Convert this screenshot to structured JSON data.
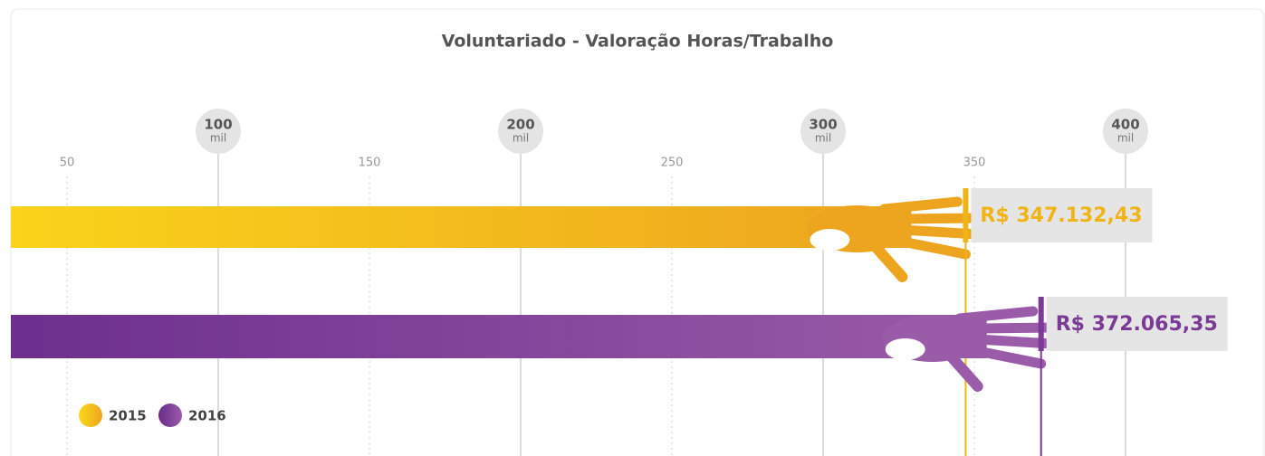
{
  "chart_data": {
    "type": "bar",
    "title": "Voluntariado - Valoração Horas/Trabalho",
    "categories": [
      "2015",
      "2016"
    ],
    "series": [
      {
        "name": "2015",
        "color": "#f0b416",
        "values": [
          347.13243,
          null
        ],
        "value_labels": [
          "R$ 347.132,43",
          null
        ]
      },
      {
        "name": "2016",
        "color": "#7b3a96",
        "values": [
          null,
          372.06535
        ],
        "value_labels": [
          null,
          "R$ 372.065,35"
        ]
      }
    ],
    "xlim": [
      0,
      420
    ],
    "xticks": [
      100,
      200,
      300,
      400
    ],
    "xtick_unit": "mil",
    "xticks_minor": [
      50,
      150,
      250,
      350
    ],
    "grid": true,
    "legend": "bottom-left"
  }
}
